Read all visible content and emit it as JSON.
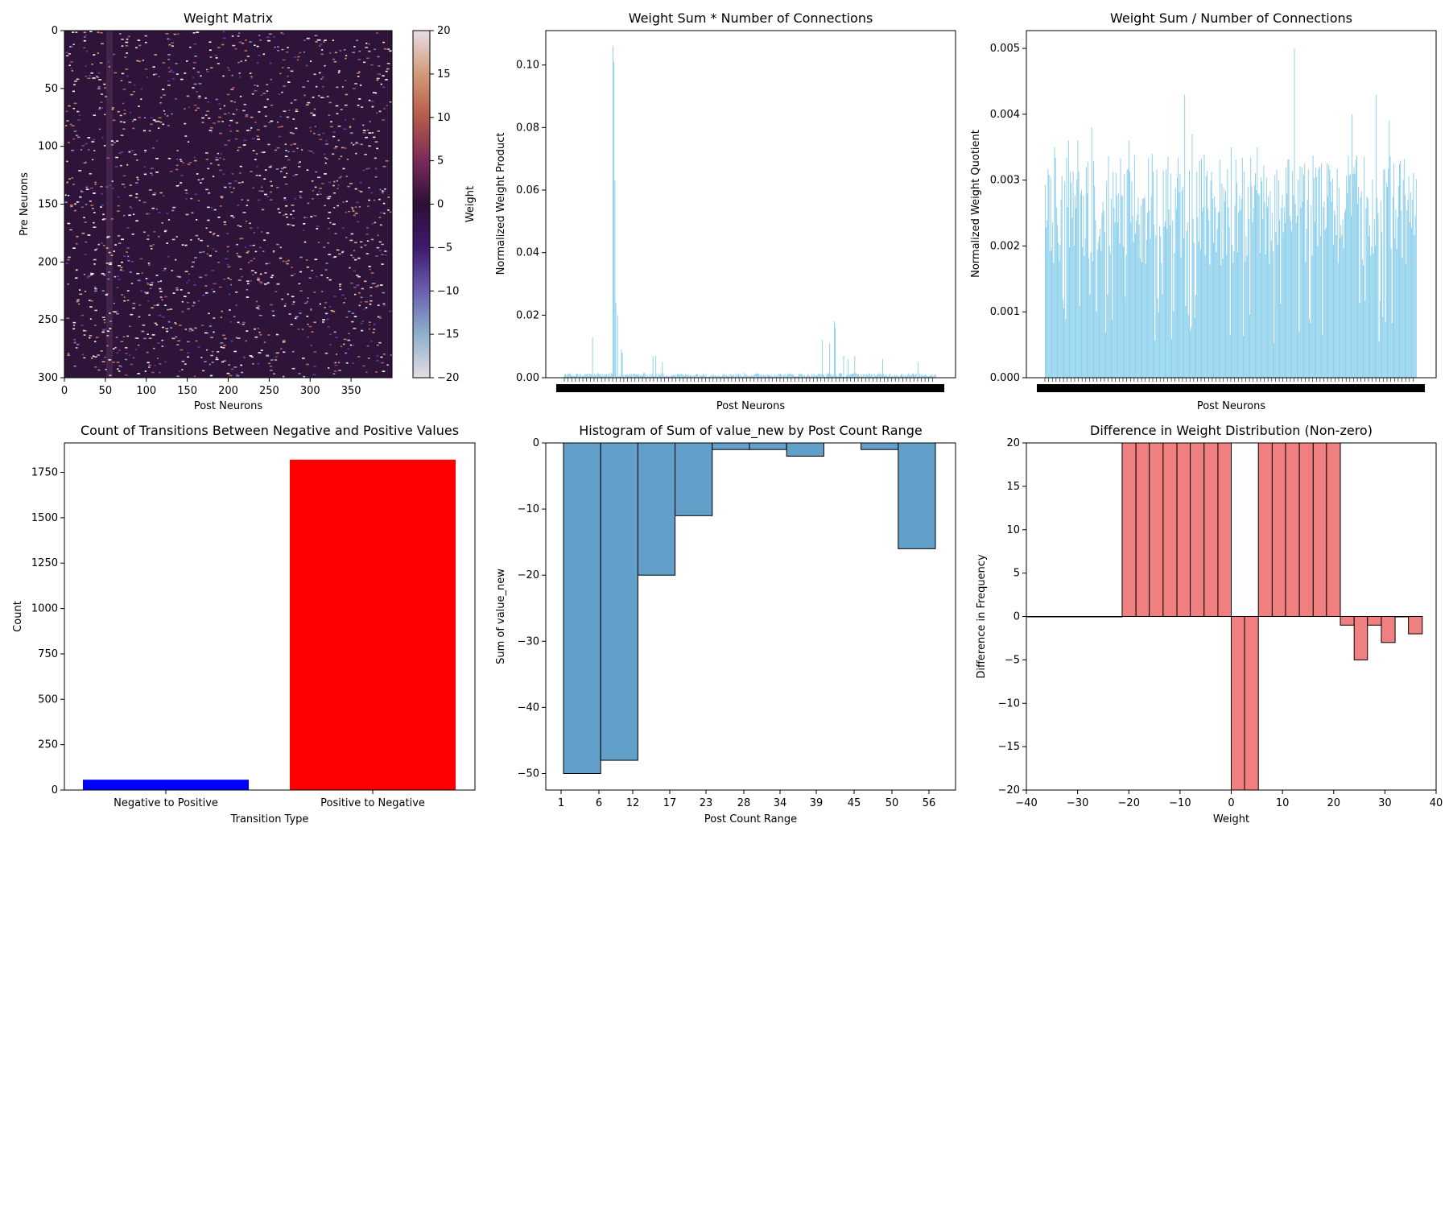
{
  "chart_data": [
    {
      "type": "heatmap",
      "title": "Weight Matrix",
      "xlabel": "Post Neurons",
      "ylabel": "Pre Neurons",
      "xlim": [
        0,
        400
      ],
      "ylim": [
        300,
        0
      ],
      "x_ticks": [
        "0",
        "50",
        "100",
        "150",
        "200",
        "250",
        "300",
        "350"
      ],
      "y_ticks": [
        "0",
        "50",
        "100",
        "150",
        "200",
        "250",
        "300"
      ],
      "colorbar": {
        "label": "Weight",
        "range": [
          -20,
          20
        ],
        "ticks": [
          "20",
          "15",
          "10",
          "5",
          "0",
          "−5",
          "−10",
          "−15",
          "−20"
        ],
        "colors": [
          "#e6dde6",
          "#d29a76",
          "#b55a4b",
          "#7a2a5a",
          "#2d0f37",
          "#3d1a6e",
          "#6a5fb0",
          "#8fb0cc",
          "#e4dde4"
        ]
      },
      "background_color": "#2d1438",
      "grid": false
    },
    {
      "type": "bar",
      "title": "Weight Sum * Number of Connections",
      "xlabel": "Post Neurons",
      "ylabel": "Normalized Weight Product",
      "ylim": [
        0,
        0.111
      ],
      "y_ticks": [
        "0.00",
        "0.02",
        "0.04",
        "0.06",
        "0.08",
        "0.10"
      ],
      "n_bars": 400,
      "bar_color": "#87ceeb",
      "peaks": [
        {
          "index": 30,
          "value": 0.013
        },
        {
          "index": 52,
          "value": 0.106
        },
        {
          "index": 53,
          "value": 0.101
        },
        {
          "index": 54,
          "value": 0.063
        },
        {
          "index": 55,
          "value": 0.024
        },
        {
          "index": 57,
          "value": 0.02
        },
        {
          "index": 61,
          "value": 0.009
        },
        {
          "index": 62,
          "value": 0.008
        },
        {
          "index": 95,
          "value": 0.007
        },
        {
          "index": 98,
          "value": 0.007
        },
        {
          "index": 105,
          "value": 0.005
        },
        {
          "index": 277,
          "value": 0.012
        },
        {
          "index": 285,
          "value": 0.011
        },
        {
          "index": 290,
          "value": 0.018
        },
        {
          "index": 291,
          "value": 0.016
        },
        {
          "index": 300,
          "value": 0.007
        },
        {
          "index": 305,
          "value": 0.006
        },
        {
          "index": 312,
          "value": 0.007
        },
        {
          "index": 342,
          "value": 0.006
        },
        {
          "index": 380,
          "value": 0.005
        }
      ],
      "grid": false
    },
    {
      "type": "bar",
      "title": "Weight Sum / Number of Connections",
      "xlabel": "Post Neurons",
      "ylabel": "Normalized Weight Quotient",
      "ylim": [
        0,
        0.00527
      ],
      "y_ticks": [
        "0.000",
        "0.001",
        "0.002",
        "0.003",
        "0.004",
        "0.005"
      ],
      "n_bars": 400,
      "bar_color": "#87ceeb",
      "peaks": [
        {
          "index": 10,
          "value": 0.0035
        },
        {
          "index": 25,
          "value": 0.0036
        },
        {
          "index": 35,
          "value": 0.0036
        },
        {
          "index": 50,
          "value": 0.0038
        },
        {
          "index": 90,
          "value": 0.0036
        },
        {
          "index": 115,
          "value": 0.0034
        },
        {
          "index": 150,
          "value": 0.0043
        },
        {
          "index": 158,
          "value": 0.0037
        },
        {
          "index": 200,
          "value": 0.0035
        },
        {
          "index": 228,
          "value": 0.0035
        },
        {
          "index": 268,
          "value": 0.005
        },
        {
          "index": 330,
          "value": 0.004
        },
        {
          "index": 356,
          "value": 0.0043
        },
        {
          "index": 370,
          "value": 0.0039
        }
      ],
      "grid": false
    },
    {
      "type": "bar",
      "title": "Count of Transitions Between Negative and Positive Values",
      "xlabel": "Transition Type",
      "ylabel": "Count",
      "categories": [
        "Negative to Positive",
        "Positive to Negative"
      ],
      "values": [
        57,
        1820
      ],
      "colors": [
        "#0000ff",
        "#ff0000"
      ],
      "ylim": [
        0,
        1912
      ],
      "y_ticks": [
        "0",
        "250",
        "500",
        "750",
        "1000",
        "1250",
        "1500",
        "1750"
      ],
      "grid": false
    },
    {
      "type": "bar",
      "title": "Histogram of Sum of value_new by Post Count Range",
      "xlabel": "Post Count Range",
      "ylabel": "Sum of value_new",
      "x_ticks": [
        "1",
        "6",
        "12",
        "17",
        "23",
        "28",
        "34",
        "39",
        "45",
        "50",
        "56"
      ],
      "values": [
        -50,
        -48,
        -20,
        -11,
        -1,
        -1,
        -2,
        0,
        -1,
        -16
      ],
      "ylim": [
        -52.5,
        0
      ],
      "y_ticks": [
        "0",
        "−10",
        "−20",
        "−30",
        "−40",
        "−50"
      ],
      "bar_color": "#62a0ca",
      "grid": false
    },
    {
      "type": "bar",
      "title": "Difference in Weight Distribution (Non-zero)",
      "xlabel": "Weight",
      "ylabel": "Difference in Frequency",
      "bin_edges": [
        -40,
        -37.3,
        -34.6,
        -32,
        -29.3,
        -26.6,
        -24,
        -21.3,
        -18.6,
        -16,
        -13.3,
        -10.6,
        -8,
        -5.3,
        -2.6,
        0,
        2.6,
        5.3,
        8,
        10.6,
        13.3,
        16,
        18.6,
        21.3,
        24,
        26.6,
        29.3,
        32,
        34.6,
        37.3
      ],
      "values": [
        0,
        0,
        0,
        0,
        0,
        0,
        0,
        20,
        20,
        20,
        20,
        20,
        20,
        20,
        20,
        -20,
        -20,
        20,
        20,
        20,
        20,
        20,
        20,
        -1,
        -5,
        -1,
        -3,
        0,
        -2
      ],
      "xlim": [
        -40,
        40
      ],
      "ylim": [
        -20,
        20
      ],
      "x_ticks": [
        "−40",
        "−30",
        "−20",
        "−10",
        "0",
        "10",
        "20",
        "30",
        "40"
      ],
      "y_ticks": [
        "20",
        "15",
        "10",
        "5",
        "0",
        "−5",
        "−10",
        "−15",
        "−20"
      ],
      "bar_color": "#f08080",
      "grid": false
    }
  ]
}
